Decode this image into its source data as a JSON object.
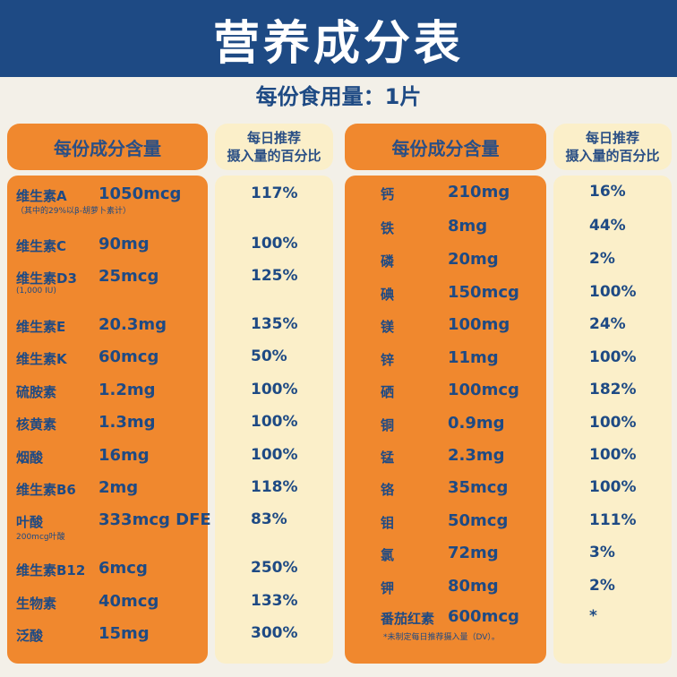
{
  "title": "营养成分表",
  "serving": "每份食用量：1片",
  "headers": {
    "left_amount": "每份成分含量",
    "left_dv_line1": "每日推荐",
    "left_dv_line2": "摄入量的百分比",
    "right_amount": "每份成分含量",
    "right_dv_line1": "每日推荐",
    "right_dv_line2": "摄入量的百分比"
  },
  "left_rows": [
    {
      "name": "维生素A",
      "amount": "1050mcg",
      "dv": "117%",
      "note": "（其中的29%以β-胡萝卜素计）"
    },
    {
      "name": "维生素C",
      "amount": "90mg",
      "dv": "100%"
    },
    {
      "name": "维生素D3",
      "amount": "25mcg",
      "dv": "125%",
      "note": "(1,000 IU)"
    },
    {
      "name": "维生素E",
      "amount": "20.3mg",
      "dv": "135%"
    },
    {
      "name": "维生素K",
      "amount": "60mcg",
      "dv": "50%"
    },
    {
      "name": "硫胺素",
      "amount": "1.2mg",
      "dv": "100%"
    },
    {
      "name": "核黄素",
      "amount": "1.3mg",
      "dv": "100%"
    },
    {
      "name": "烟酸",
      "amount": "16mg",
      "dv": "100%"
    },
    {
      "name": "维生素B6",
      "amount": "2mg",
      "dv": "118%"
    },
    {
      "name": "叶酸",
      "amount": "333mcg DFE",
      "dv": "83%",
      "note": "200mcg叶酸"
    },
    {
      "name": "维生素B12",
      "amount": "6mcg",
      "dv": "250%"
    },
    {
      "name": "生物素",
      "amount": "40mcg",
      "dv": "133%"
    },
    {
      "name": "泛酸",
      "amount": "15mg",
      "dv": "300%"
    }
  ],
  "right_rows": [
    {
      "name": "钙",
      "amount": "210mg",
      "dv": "16%"
    },
    {
      "name": "铁",
      "amount": "8mg",
      "dv": "44%"
    },
    {
      "name": "磷",
      "amount": "20mg",
      "dv": "2%"
    },
    {
      "name": "碘",
      "amount": "150mcg",
      "dv": "100%"
    },
    {
      "name": "镁",
      "amount": "100mg",
      "dv": "24%"
    },
    {
      "name": "锌",
      "amount": "11mg",
      "dv": "100%"
    },
    {
      "name": "硒",
      "amount": "100mcg",
      "dv": "182%"
    },
    {
      "name": "铜",
      "amount": "0.9mg",
      "dv": "100%"
    },
    {
      "name": "锰",
      "amount": "2.3mg",
      "dv": "100%"
    },
    {
      "name": "铬",
      "amount": "35mcg",
      "dv": "100%"
    },
    {
      "name": "钼",
      "amount": "50mcg",
      "dv": "111%"
    },
    {
      "name": "氯",
      "amount": "72mg",
      "dv": "3%"
    },
    {
      "name": "钾",
      "amount": "80mg",
      "dv": "2%"
    },
    {
      "name": "番茄红素",
      "amount": "600mcg",
      "dv": "*"
    }
  ],
  "footnote": "*未制定每日推荐摄入量（DV）。",
  "colors": {
    "banner": "#1e4a84",
    "orange": "#f0882e",
    "cream": "#fbefc9",
    "text": "#1e4a84"
  }
}
